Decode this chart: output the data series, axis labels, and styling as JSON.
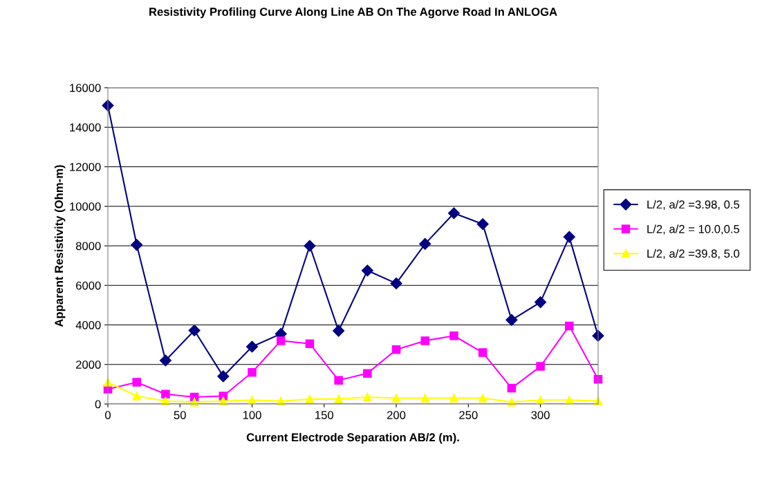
{
  "chart_data": {
    "type": "line",
    "title": "Resistivity Profiling Curve Along Line AB On The Agorve Road In ANLOGA",
    "xlabel": "Current Electrode Separation AB/2 (m).",
    "ylabel": "Apparent Resistivity (Ohm-m)",
    "x": [
      0,
      20,
      40,
      60,
      80,
      100,
      120,
      140,
      160,
      180,
      200,
      220,
      240,
      260,
      280,
      300,
      320,
      340
    ],
    "series": [
      {
        "name": "L/2, a/2 =3.98, 0.5",
        "color": "#000080",
        "marker": "diamond",
        "values": [
          15100,
          8050,
          2200,
          3720,
          1400,
          2900,
          3550,
          8000,
          3700,
          6750,
          6100,
          8100,
          9650,
          9100,
          4250,
          5150,
          8450,
          3450
        ]
      },
      {
        "name": "L/2, a/2 = 10.0,0.5",
        "color": "#ff00ff",
        "marker": "square",
        "values": [
          750,
          1100,
          500,
          350,
          400,
          1600,
          3200,
          3050,
          1200,
          1550,
          2750,
          3200,
          3450,
          2600,
          800,
          1900,
          3950,
          1250
        ]
      },
      {
        "name": "L/2, a/2 =39.8, 5.0",
        "color": "#ffff00",
        "marker": "triangle",
        "values": [
          1100,
          400,
          150,
          100,
          150,
          200,
          150,
          250,
          250,
          350,
          300,
          300,
          300,
          300,
          100,
          200,
          200,
          150
        ]
      }
    ],
    "xlim": [
      0,
      340
    ],
    "xticks": [
      0,
      50,
      100,
      150,
      200,
      250,
      300
    ],
    "ylim": [
      0,
      16000
    ],
    "yticks": [
      0,
      2000,
      4000,
      6000,
      8000,
      10000,
      12000,
      14000,
      16000
    ],
    "grid": "y",
    "legend": "right",
    "line_style": "solid"
  }
}
